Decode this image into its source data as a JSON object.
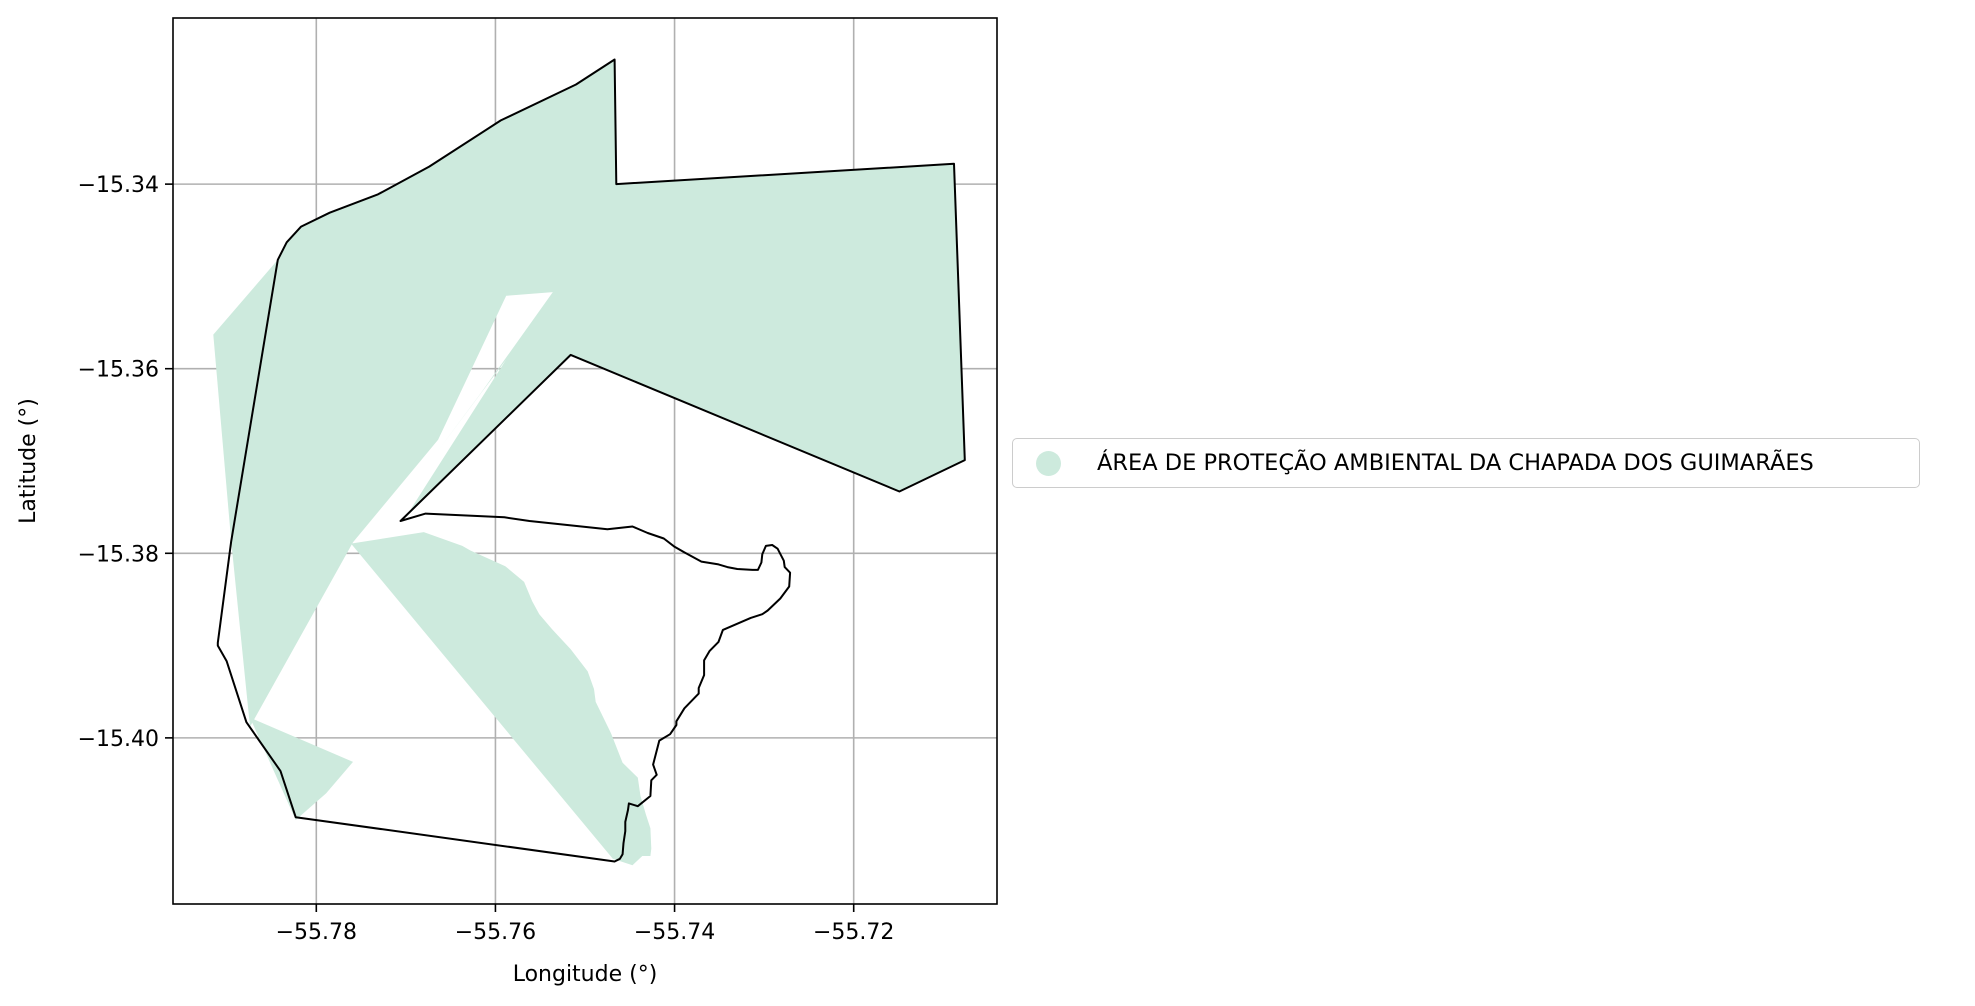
{
  "chart_data": {
    "type": "map",
    "xlabel": "Longitude (°)",
    "ylabel": "Latitude (°)",
    "xlim": [
      -55.796,
      -55.704
    ],
    "ylim": [
      -15.418,
      -15.322
    ],
    "grid": true,
    "x_ticks": [
      -55.78,
      -55.76,
      -55.74,
      -55.72
    ],
    "y_ticks": [
      -15.34,
      -15.36,
      -15.38,
      -15.4
    ],
    "x_tick_labels": [
      "−55.78",
      "−55.76",
      "−55.74",
      "−55.72"
    ],
    "y_tick_labels": [
      "−15.34",
      "−15.36",
      "−15.38",
      "−15.40"
    ],
    "legend": {
      "placement": "right",
      "entries": [
        {
          "label": "ÁREA DE PROTEÇÃO AMBIENTAL DA CHAPADA DOS GUIMARÃES",
          "color": "#cdeadd"
        }
      ]
    },
    "fill_color": "#cdeadd",
    "outline_color": "#000000",
    "filled_regions": [
      [
        [
          -55.7843,
          -15.3482
        ],
        [
          -55.7833,
          -15.3463
        ],
        [
          -55.7817,
          -15.3446
        ],
        [
          -55.7785,
          -15.3431
        ],
        [
          -55.7731,
          -15.3411
        ],
        [
          -55.7674,
          -15.3381
        ],
        [
          -55.7594,
          -15.3331
        ],
        [
          -55.751,
          -15.3292
        ],
        [
          -55.7467,
          -15.3265
        ],
        [
          -55.7465,
          -15.34
        ],
        [
          -55.7088,
          -15.3378
        ],
        [
          -55.7076,
          -15.3699
        ],
        [
          -55.7149,
          -15.3733
        ],
        [
          -55.7516,
          -15.3585
        ],
        [
          -55.7701,
          -15.3762
        ],
        [
          -55.7588,
          -15.359
        ],
        [
          -55.7665,
          -15.369
        ],
        [
          -55.7616,
          -15.3626
        ],
        [
          -55.7536,
          -15.3517
        ],
        [
          -55.7588,
          -15.3521
        ],
        [
          -55.7664,
          -15.3677
        ],
        [
          -55.7759,
          -15.3788
        ],
        [
          -55.7874,
          -15.3988
        ],
        [
          -55.7895,
          -15.3787
        ],
        [
          -55.7915,
          -15.3563
        ],
        [
          -55.7843,
          -15.3482
        ]
      ],
      [
        [
          -55.7765,
          -15.379
        ],
        [
          -55.7765,
          -15.379
        ],
        [
          -55.768,
          -15.3777
        ],
        [
          -55.7637,
          -15.3792
        ],
        [
          -55.7628,
          -15.3797
        ],
        [
          -55.7589,
          -15.3814
        ],
        [
          -55.7568,
          -15.3831
        ],
        [
          -55.7559,
          -15.3852
        ],
        [
          -55.7551,
          -15.3866
        ],
        [
          -55.7537,
          -15.3882
        ],
        [
          -55.7516,
          -15.3904
        ],
        [
          -55.7497,
          -15.3928
        ],
        [
          -55.749,
          -15.3947
        ],
        [
          -55.7488,
          -15.3961
        ],
        [
          -55.7471,
          -15.3995
        ],
        [
          -55.7458,
          -15.4027
        ],
        [
          -55.7441,
          -15.4043
        ],
        [
          -55.7438,
          -15.4063
        ],
        [
          -55.7432,
          -15.4083
        ],
        [
          -55.7427,
          -15.4098
        ],
        [
          -55.7426,
          -15.412
        ],
        [
          -55.7427,
          -15.4128
        ],
        [
          -55.7436,
          -15.4128
        ],
        [
          -55.7447,
          -15.4138
        ],
        [
          -55.7469,
          -15.4131
        ],
        [
          -55.7766,
          -15.3784
        ]
      ],
      [
        [
          -55.7874,
          -15.3978
        ],
        [
          -55.7759,
          -15.4026
        ],
        [
          -55.7789,
          -15.406
        ],
        [
          -55.7823,
          -15.4089
        ],
        [
          -55.7874,
          -15.3978
        ]
      ]
    ],
    "outline_regions": [
      [
        [
          -55.791,
          -15.3897
        ],
        [
          -55.791,
          -15.39
        ],
        [
          -55.79,
          -15.3917
        ],
        [
          -55.7878,
          -15.3983
        ],
        [
          -55.784,
          -15.4036
        ],
        [
          -55.7823,
          -15.4086
        ],
        [
          -55.7467,
          -15.4134
        ],
        [
          -55.7461,
          -15.4131
        ],
        [
          -55.7458,
          -15.4126
        ],
        [
          -55.7457,
          -15.4114
        ],
        [
          -55.7455,
          -15.4101
        ],
        [
          -55.7455,
          -15.4091
        ],
        [
          -55.7452,
          -15.4078
        ],
        [
          -55.7451,
          -15.4071
        ],
        [
          -55.7441,
          -15.4074
        ],
        [
          -55.7427,
          -15.4063
        ],
        [
          -55.7426,
          -15.4046
        ],
        [
          -55.742,
          -15.404
        ],
        [
          -55.7424,
          -15.4029
        ],
        [
          -55.7417,
          -15.4003
        ],
        [
          -55.7405,
          -15.3996
        ],
        [
          -55.7398,
          -15.3986
        ],
        [
          -55.7398,
          -15.3982
        ],
        [
          -55.7389,
          -15.3968
        ],
        [
          -55.7373,
          -15.3952
        ],
        [
          -55.7373,
          -15.3946
        ],
        [
          -55.7367,
          -15.3932
        ],
        [
          -55.7367,
          -15.3916
        ],
        [
          -55.7361,
          -15.3906
        ],
        [
          -55.7351,
          -15.3896
        ],
        [
          -55.7346,
          -15.3883
        ],
        [
          -55.7315,
          -15.387
        ],
        [
          -55.7302,
          -15.3866
        ],
        [
          -55.7296,
          -15.3862
        ],
        [
          -55.7282,
          -15.3849
        ],
        [
          -55.7272,
          -15.3836
        ],
        [
          -55.7271,
          -15.3821
        ],
        [
          -55.7277,
          -15.3815
        ],
        [
          -55.7278,
          -15.3808
        ],
        [
          -55.7285,
          -15.3795
        ],
        [
          -55.7291,
          -15.3791
        ],
        [
          -55.7298,
          -15.3792
        ],
        [
          -55.7302,
          -15.3801
        ],
        [
          -55.7303,
          -15.381
        ],
        [
          -55.7307,
          -15.3818
        ],
        [
          -55.7313,
          -15.3818
        ],
        [
          -55.733,
          -15.3817
        ],
        [
          -55.7341,
          -15.3815
        ],
        [
          -55.7351,
          -15.3812
        ],
        [
          -55.737,
          -15.3809
        ],
        [
          -55.7389,
          -15.3799
        ],
        [
          -55.74,
          -15.3793
        ],
        [
          -55.7412,
          -15.3784
        ],
        [
          -55.743,
          -15.3778
        ],
        [
          -55.7447,
          -15.3771
        ],
        [
          -55.7475,
          -15.3774
        ],
        [
          -55.7562,
          -15.3765
        ],
        [
          -55.759,
          -15.3761
        ],
        [
          -55.7678,
          -15.3757
        ],
        [
          -55.7706,
          -15.3765
        ],
        [
          -55.7516,
          -15.3585
        ],
        [
          -55.7149,
          -15.3733
        ],
        [
          -55.7076,
          -15.3699
        ],
        [
          -55.7088,
          -15.3378
        ],
        [
          -55.7465,
          -15.34
        ],
        [
          -55.7467,
          -15.3265
        ],
        [
          -55.751,
          -15.3292
        ],
        [
          -55.7594,
          -15.3331
        ],
        [
          -55.7674,
          -15.3381
        ],
        [
          -55.7731,
          -15.3411
        ],
        [
          -55.7785,
          -15.3431
        ],
        [
          -55.7817,
          -15.3446
        ],
        [
          -55.7833,
          -15.3463
        ],
        [
          -55.7843,
          -15.3482
        ],
        [
          -55.7895,
          -15.3787
        ],
        [
          -55.791,
          -15.3897
        ]
      ]
    ]
  }
}
